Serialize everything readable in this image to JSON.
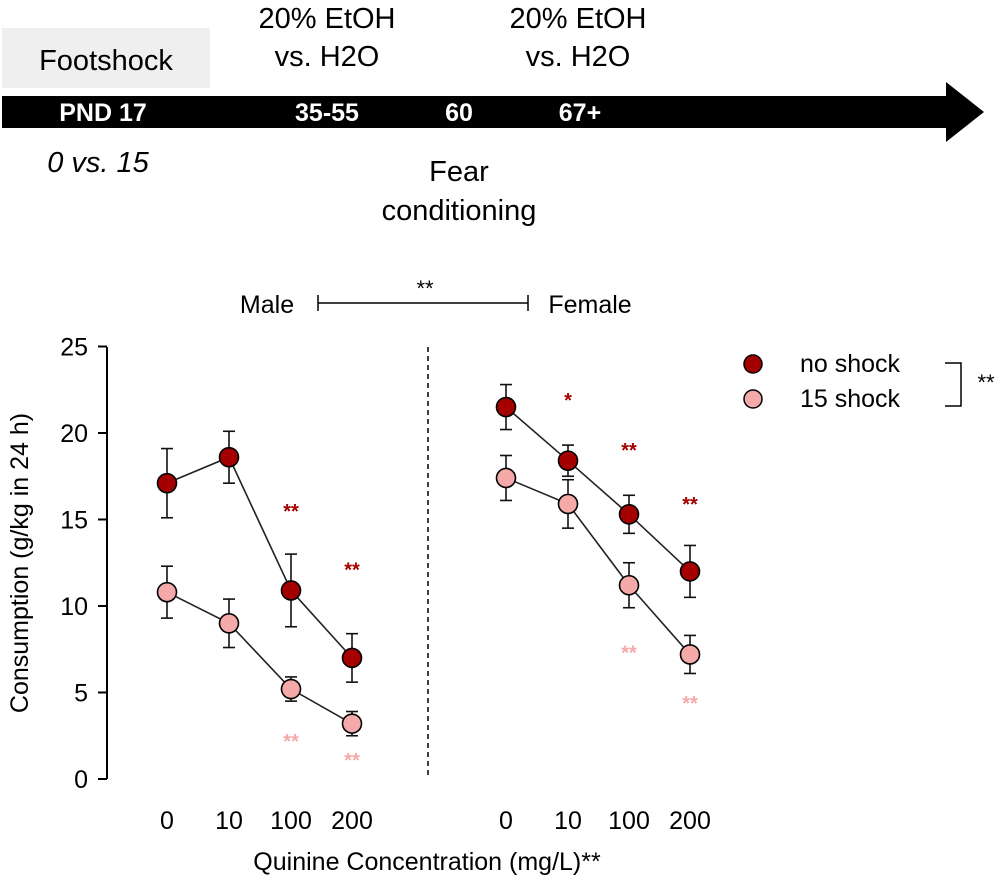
{
  "timeline": {
    "box_label": "Footshock",
    "arrow_labels": [
      "PND 17",
      "35-55",
      "60",
      "67+"
    ],
    "shock_groups": "0 vs. 15",
    "etoh_1": [
      "20% EtOH",
      "vs. H2O"
    ],
    "etoh_2": [
      "20% EtOH",
      "vs. H2O"
    ],
    "fear": [
      "Fear",
      "conditioning"
    ]
  },
  "sex_comparison": {
    "male": "Male",
    "female": "Female",
    "sig": "**"
  },
  "legend": {
    "items": [
      "no shock",
      "15 shock"
    ],
    "sig": "**"
  },
  "chart_data": {
    "type": "line",
    "ylabel": "Consumption (g/kg in 24 h)",
    "xlabel": "Quinine Concentration (mg/L)**",
    "ylim": [
      0,
      25
    ],
    "yticks": [
      0,
      5,
      10,
      15,
      20,
      25
    ],
    "colors": {
      "no_shock": "#a50000",
      "shock15": "#f5a9a9"
    },
    "panels": [
      {
        "name": "Male",
        "x": [
          "0",
          "10",
          "100",
          "200"
        ],
        "series": [
          {
            "name": "no shock",
            "values": [
              17.1,
              18.6,
              10.9,
              7.0
            ],
            "errors": [
              2.0,
              1.5,
              2.1,
              1.4
            ],
            "sig": [
              "",
              "",
              "**",
              "**"
            ],
            "sig_y": [
              null,
              null,
              15.1,
              11.7
            ]
          },
          {
            "name": "15 shock",
            "values": [
              10.8,
              9.0,
              5.2,
              3.2
            ],
            "errors": [
              1.5,
              1.4,
              0.7,
              0.7
            ],
            "sig": [
              "",
              "",
              "**",
              "**"
            ],
            "sig_y": [
              null,
              null,
              1.8,
              0.7
            ]
          }
        ]
      },
      {
        "name": "Female",
        "x": [
          "0",
          "10",
          "100",
          "200"
        ],
        "series": [
          {
            "name": "no shock",
            "values": [
              21.5,
              18.4,
              15.3,
              12.0
            ],
            "errors": [
              1.3,
              0.9,
              1.1,
              1.5
            ],
            "sig": [
              "",
              "*",
              "**",
              "**"
            ],
            "sig_y": [
              null,
              21.5,
              18.6,
              15.5
            ]
          },
          {
            "name": "15 shock",
            "values": [
              17.4,
              15.9,
              11.2,
              7.2
            ],
            "errors": [
              1.3,
              1.4,
              1.3,
              1.1
            ],
            "sig": [
              "",
              "",
              "**",
              "**"
            ],
            "sig_y": [
              null,
              null,
              6.9,
              4.0
            ]
          }
        ]
      }
    ]
  }
}
